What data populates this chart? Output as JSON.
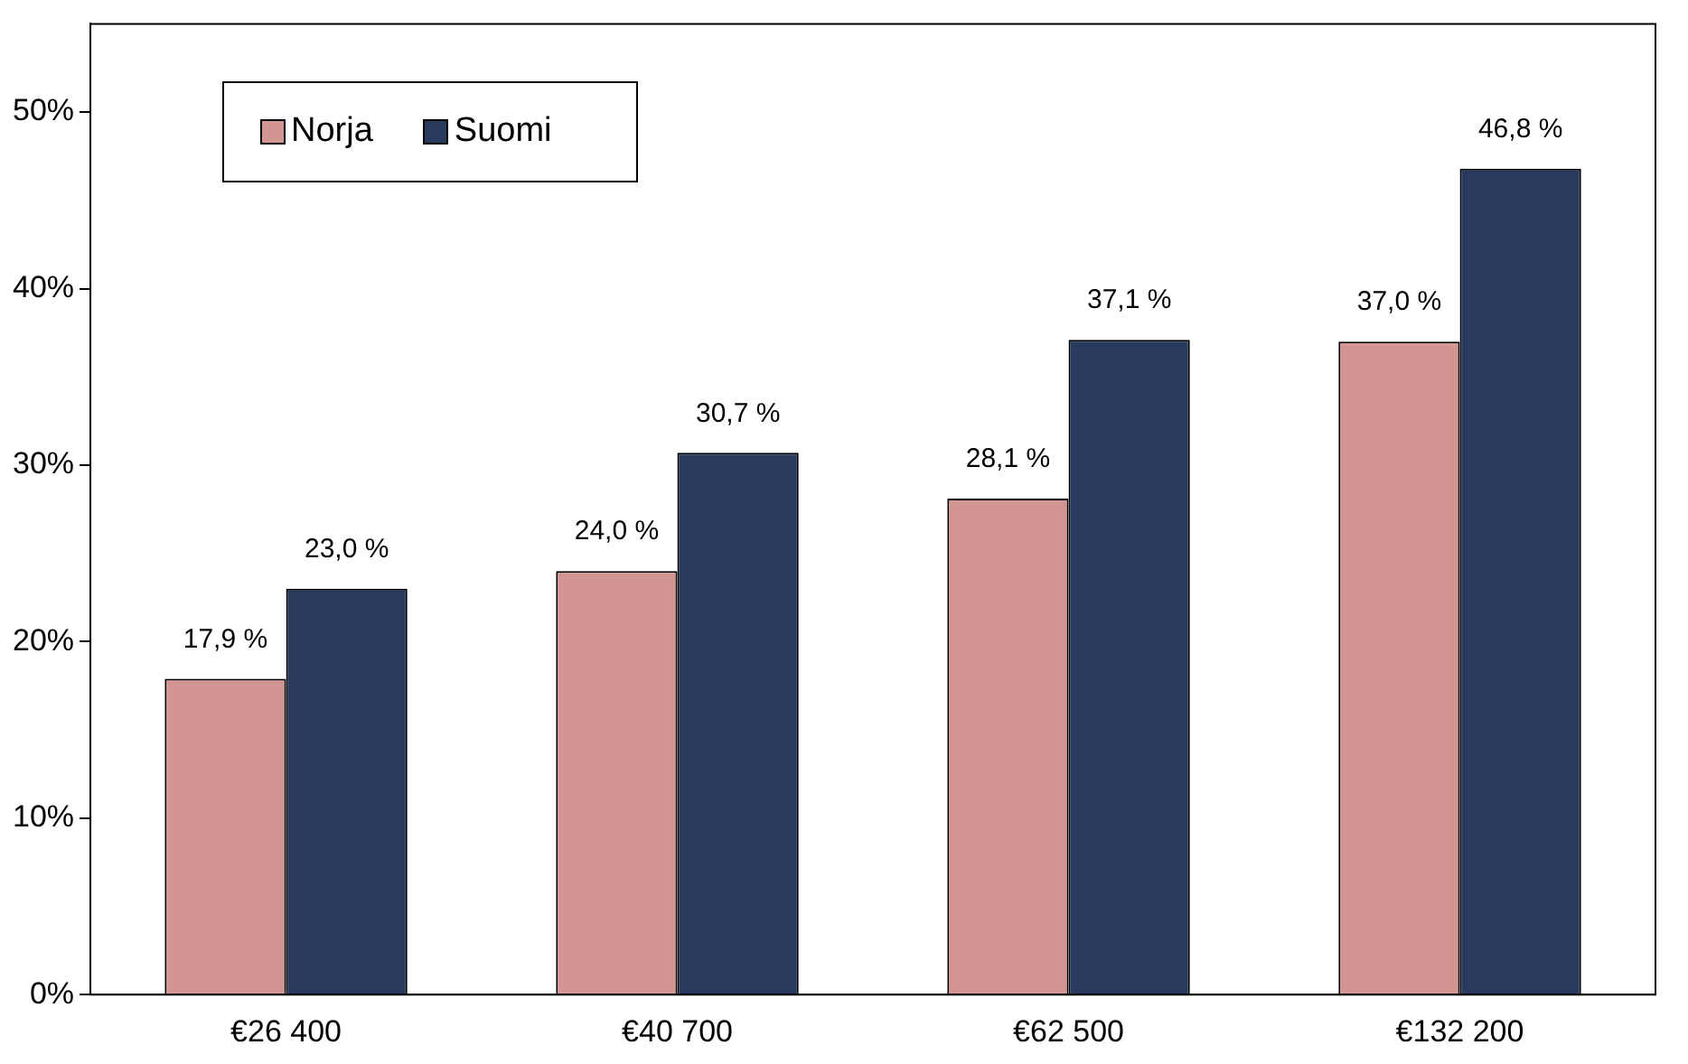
{
  "chart_data": {
    "type": "bar",
    "categories": [
      "€26 400",
      "€40 700",
      "€62 500",
      "€132 200"
    ],
    "series": [
      {
        "name": "Norja",
        "color": "#d39592",
        "values": [
          17.9,
          24.0,
          28.1,
          37.0
        ],
        "value_labels": [
          "17,9 %",
          "24,0 %",
          "28,1 %",
          "37,0 %"
        ]
      },
      {
        "name": "Suomi",
        "color": "#283a5e",
        "values": [
          23.0,
          30.7,
          37.1,
          46.8
        ],
        "value_labels": [
          "23,0 %",
          "30,7 %",
          "37,1 %",
          "46,8 %"
        ]
      }
    ],
    "ylim": [
      0,
      55
    ],
    "yticks": [
      {
        "value": 0,
        "label": "0%"
      },
      {
        "value": 10,
        "label": "10%"
      },
      {
        "value": 20,
        "label": "20%"
      },
      {
        "value": 30,
        "label": "30%"
      },
      {
        "value": 40,
        "label": "40%"
      },
      {
        "value": 50,
        "label": "50%"
      }
    ],
    "grid": false,
    "legend": "top left"
  }
}
